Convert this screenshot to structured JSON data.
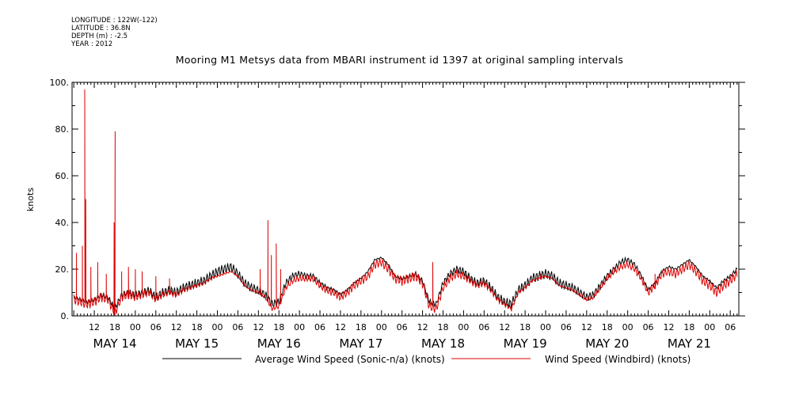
{
  "header": {
    "meta_lines": [
      "LONGITUDE : 122W(-122)",
      "LATITUDE : 36.8N",
      "DEPTH (m) : -2.5",
      "YEAR : 2012"
    ],
    "title": "Mooring M1 Metsys data from MBARI instrument id 1397 at original sampling intervals"
  },
  "chart_data": {
    "type": "line",
    "title": "Mooring M1 Metsys data from MBARI instrument id 1397 at original sampling intervals",
    "ylabel": "knots",
    "xlabel": "",
    "ylim": [
      0,
      100
    ],
    "y_ticks": [
      0,
      20,
      40,
      60,
      80,
      100
    ],
    "y_tick_labels": [
      "0.",
      "20.",
      "40.",
      "60.",
      "80.",
      "100."
    ],
    "x_unit": "hours since May 13 00:00 (2012)",
    "xlim": [
      5.5,
      200.5
    ],
    "hour_ticks": [
      {
        "x": 12,
        "label": "12"
      },
      {
        "x": 18,
        "label": "18"
      },
      {
        "x": 24,
        "label": "00"
      },
      {
        "x": 30,
        "label": "06"
      },
      {
        "x": 36,
        "label": "12"
      },
      {
        "x": 42,
        "label": "18"
      },
      {
        "x": 48,
        "label": "00"
      },
      {
        "x": 54,
        "label": "06"
      },
      {
        "x": 60,
        "label": "12"
      },
      {
        "x": 66,
        "label": "18"
      },
      {
        "x": 72,
        "label": "00"
      },
      {
        "x": 78,
        "label": "06"
      },
      {
        "x": 84,
        "label": "12"
      },
      {
        "x": 90,
        "label": "18"
      },
      {
        "x": 96,
        "label": "00"
      },
      {
        "x": 102,
        "label": "06"
      },
      {
        "x": 108,
        "label": "12"
      },
      {
        "x": 114,
        "label": "18"
      },
      {
        "x": 120,
        "label": "00"
      },
      {
        "x": 126,
        "label": "06"
      },
      {
        "x": 132,
        "label": "12"
      },
      {
        "x": 138,
        "label": "18"
      },
      {
        "x": 144,
        "label": "00"
      },
      {
        "x": 150,
        "label": "06"
      },
      {
        "x": 156,
        "label": "12"
      },
      {
        "x": 162,
        "label": "18"
      },
      {
        "x": 168,
        "label": "00"
      },
      {
        "x": 174,
        "label": "06"
      },
      {
        "x": 180,
        "label": "12"
      },
      {
        "x": 186,
        "label": "18"
      },
      {
        "x": 192,
        "label": "00"
      },
      {
        "x": 198,
        "label": "06"
      }
    ],
    "day_labels": [
      {
        "x": 18,
        "label": "MAY 14"
      },
      {
        "x": 42,
        "label": "MAY 15"
      },
      {
        "x": 66,
        "label": "MAY 16"
      },
      {
        "x": 90,
        "label": "MAY 17"
      },
      {
        "x": 114,
        "label": "MAY 18"
      },
      {
        "x": 138,
        "label": "MAY 19"
      },
      {
        "x": 162,
        "label": "MAY 20"
      },
      {
        "x": 186,
        "label": "MAY 21"
      }
    ],
    "series": [
      {
        "name": "Average Wind Speed (Sonic-n/a) (knots)",
        "color": "#000000",
        "x": [
          6,
          8,
          10,
          12,
          14,
          16,
          18,
          20,
          22,
          24,
          26,
          28,
          30,
          32,
          34,
          36,
          38,
          40,
          42,
          44,
          46,
          48,
          50,
          52,
          54,
          56,
          58,
          60,
          62,
          64,
          66,
          68,
          70,
          72,
          74,
          76,
          78,
          80,
          82,
          84,
          86,
          88,
          90,
          92,
          94,
          96,
          98,
          100,
          102,
          104,
          106,
          108,
          110,
          112,
          114,
          116,
          118,
          120,
          122,
          124,
          126,
          128,
          130,
          132,
          134,
          136,
          138,
          140,
          142,
          144,
          146,
          148,
          150,
          152,
          154,
          156,
          158,
          160,
          162,
          164,
          166,
          168,
          170,
          172,
          174,
          176,
          178,
          180,
          182,
          184,
          186,
          188,
          190,
          192,
          194,
          196,
          198,
          200
        ],
        "y": [
          8,
          7,
          6,
          7,
          9,
          8,
          3,
          9,
          10,
          9,
          10,
          11,
          8,
          10,
          11,
          10,
          12,
          13,
          14,
          15,
          17,
          19,
          20,
          21,
          18,
          14,
          12,
          11,
          9,
          5,
          6,
          14,
          17,
          18,
          17,
          17,
          14,
          12,
          11,
          9,
          11,
          14,
          16,
          19,
          24,
          25,
          22,
          17,
          16,
          17,
          18,
          15,
          6,
          5,
          14,
          18,
          20,
          19,
          16,
          14,
          15,
          12,
          8,
          6,
          5,
          11,
          13,
          16,
          17,
          18,
          17,
          14,
          13,
          12,
          10,
          8,
          9,
          13,
          17,
          20,
          23,
          24,
          22,
          17,
          11,
          14,
          19,
          21,
          20,
          22,
          24,
          21,
          17,
          15,
          12,
          15,
          17,
          20
        ]
      },
      {
        "name": "Wind Speed (Windbird) (knots)",
        "color": "#dd0000",
        "x": [
          6,
          8,
          10,
          12,
          14,
          16,
          18,
          20,
          22,
          24,
          26,
          28,
          30,
          32,
          34,
          36,
          38,
          40,
          42,
          44,
          46,
          48,
          50,
          52,
          54,
          56,
          58,
          60,
          62,
          64,
          66,
          68,
          70,
          72,
          74,
          76,
          78,
          80,
          82,
          84,
          86,
          88,
          90,
          92,
          94,
          96,
          98,
          100,
          102,
          104,
          106,
          108,
          110,
          112,
          114,
          116,
          118,
          120,
          122,
          124,
          126,
          128,
          130,
          132,
          134,
          136,
          138,
          140,
          142,
          144,
          146,
          148,
          150,
          152,
          154,
          156,
          158,
          160,
          162,
          164,
          166,
          168,
          170,
          172,
          174,
          176,
          178,
          180,
          182,
          184,
          186,
          188,
          190,
          192,
          194,
          196,
          198,
          200
        ],
        "y": [
          7,
          6,
          5,
          6,
          8,
          7,
          1,
          8,
          9,
          8,
          9,
          10,
          7,
          9,
          10,
          9,
          11,
          12,
          13,
          14,
          16,
          17,
          18,
          19,
          17,
          13,
          11,
          10,
          8,
          3,
          4,
          12,
          15,
          16,
          16,
          16,
          13,
          11,
          10,
          8,
          10,
          13,
          15,
          17,
          22,
          23,
          20,
          16,
          15,
          16,
          17,
          14,
          4,
          3,
          12,
          16,
          18,
          17,
          15,
          13,
          14,
          11,
          7,
          5,
          3,
          10,
          12,
          15,
          16,
          17,
          16,
          13,
          12,
          11,
          9,
          7,
          8,
          12,
          16,
          19,
          21,
          22,
          20,
          16,
          10,
          13,
          18,
          19,
          18,
          20,
          22,
          19,
          15,
          13,
          10,
          13,
          15,
          18
        ],
        "spikes": [
          {
            "x": 6.8,
            "y": 27
          },
          {
            "x": 8.5,
            "y": 30
          },
          {
            "x": 9.2,
            "y": 97
          },
          {
            "x": 9.5,
            "y": 50
          },
          {
            "x": 11,
            "y": 21
          },
          {
            "x": 13,
            "y": 23
          },
          {
            "x": 15.5,
            "y": 18
          },
          {
            "x": 17.8,
            "y": 40
          },
          {
            "x": 18.1,
            "y": 79
          },
          {
            "x": 20,
            "y": 19
          },
          {
            "x": 22,
            "y": 21
          },
          {
            "x": 24,
            "y": 20
          },
          {
            "x": 26,
            "y": 19
          },
          {
            "x": 30,
            "y": 17
          },
          {
            "x": 34,
            "y": 16
          },
          {
            "x": 60.5,
            "y": 20
          },
          {
            "x": 62.8,
            "y": 41
          },
          {
            "x": 63.8,
            "y": 26
          },
          {
            "x": 65.2,
            "y": 31
          },
          {
            "x": 66.5,
            "y": 20
          },
          {
            "x": 111,
            "y": 23
          },
          {
            "x": 142.6,
            "y": 18
          },
          {
            "x": 176,
            "y": 18
          }
        ]
      }
    ],
    "legend_placement": "bottom",
    "grid": false
  }
}
